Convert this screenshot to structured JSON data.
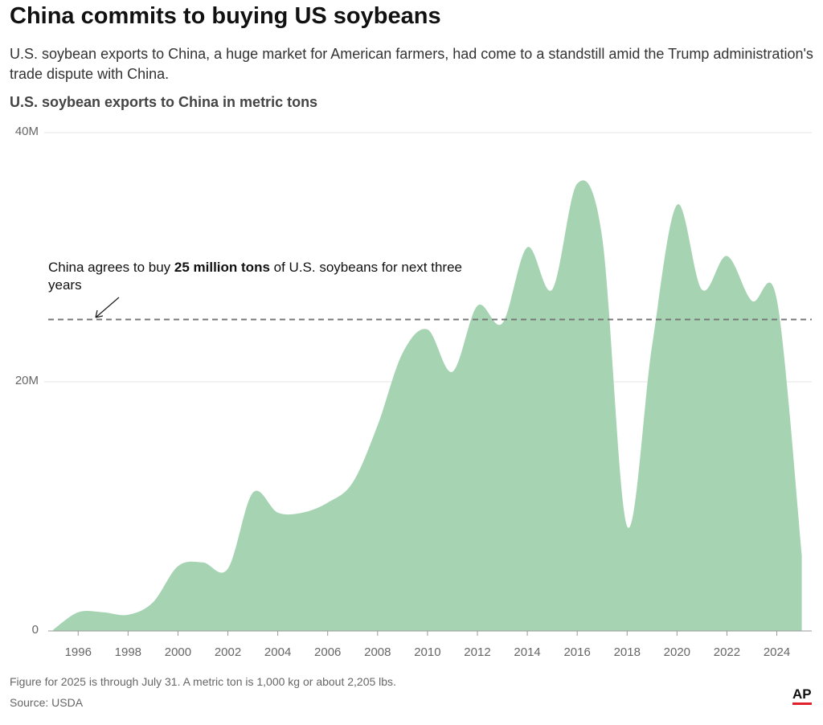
{
  "title": "China commits to buying US soybeans",
  "subtitle": "U.S. soybean exports to China, a huge market for American farmers, had come to a standstill amid the Trump administration's trade dispute with China.",
  "note": "Figure for 2025 is through July 31. A metric ton is 1,000 kg or about 2,205 lbs.",
  "source": "Source: USDA",
  "logo": "AP",
  "chart_data": {
    "type": "area",
    "y_label": "U.S. soybean exports to China in metric tons",
    "x": [
      1995,
      1996,
      1997,
      1998,
      1999,
      2000,
      2001,
      2002,
      2003,
      2004,
      2005,
      2006,
      2007,
      2008,
      2009,
      2010,
      2011,
      2012,
      2013,
      2014,
      2015,
      2016,
      2017,
      2018,
      2019,
      2020,
      2021,
      2022,
      2023,
      2024,
      2025
    ],
    "series": [
      {
        "name": "U.S. soybean exports to China",
        "color": "#a6d4b3",
        "values": [
          100000,
          1500000,
          1500000,
          1300000,
          2300000,
          5200000,
          5500000,
          5000000,
          11100000,
          9500000,
          9500000,
          10300000,
          11900000,
          16500000,
          22300000,
          24200000,
          20800000,
          26100000,
          24700000,
          30800000,
          27400000,
          35900000,
          31600000,
          8400000,
          22900000,
          34200000,
          27400000,
          30100000,
          26500000,
          26600000,
          6100000
        ]
      }
    ],
    "xlim": [
      1994.8,
      2025.4
    ],
    "xticks": [
      1996,
      1998,
      2000,
      2002,
      2004,
      2006,
      2008,
      2010,
      2012,
      2014,
      2016,
      2018,
      2020,
      2022,
      2024
    ],
    "ylim": [
      0,
      40000000
    ],
    "yticks": [
      0,
      {
        "value": 20000000,
        "label": "20M"
      },
      {
        "value": 40000000,
        "label": "40M"
      }
    ],
    "grid": true,
    "reference_line": {
      "value": 25000000,
      "text_before": "China agrees to buy",
      "text_bold": "25 million tons",
      "text_after": "of U.S. soybeans for next three years"
    }
  }
}
